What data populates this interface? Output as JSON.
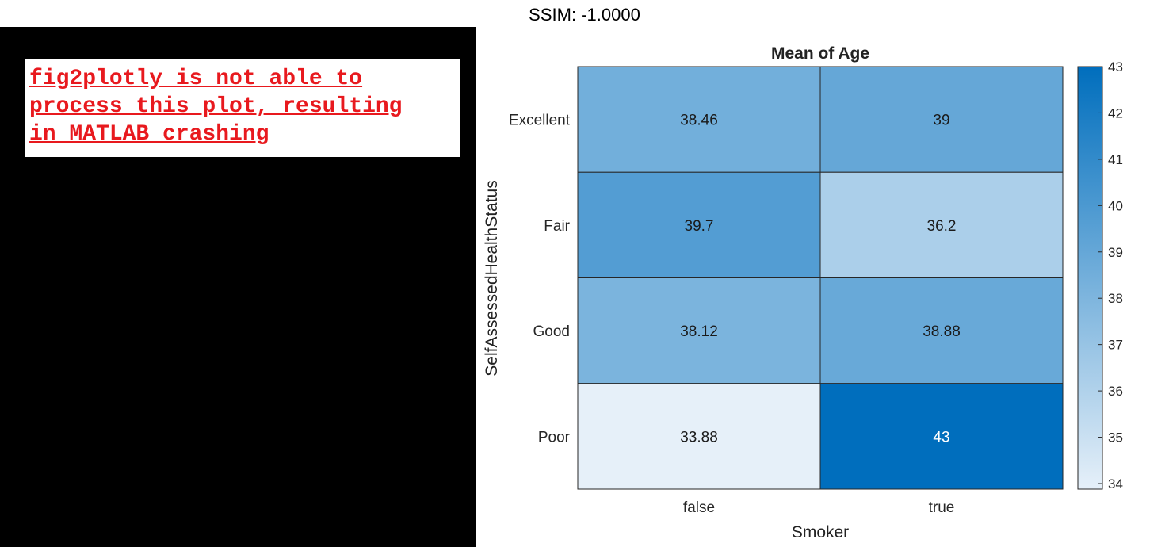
{
  "header": {
    "ssim": "SSIM: -1.0000"
  },
  "error_panel": {
    "message": "fig2plotly is not able to\nprocess this plot, resulting\nin MATLAB crashing"
  },
  "chart_data": {
    "type": "heatmap",
    "title": "Mean of Age",
    "xlabel": "Smoker",
    "ylabel": "SelfAssessedHealthStatus",
    "x_categories": [
      "false",
      "true"
    ],
    "y_categories": [
      "Excellent",
      "Fair",
      "Good",
      "Poor"
    ],
    "values": [
      [
        38.46,
        39
      ],
      [
        39.7,
        36.2
      ],
      [
        38.12,
        38.88
      ],
      [
        33.88,
        43
      ]
    ],
    "value_labels": [
      [
        "38.46",
        "39"
      ],
      [
        "39.7",
        "36.2"
      ],
      [
        "38.12",
        "38.88"
      ],
      [
        "33.88",
        "43"
      ]
    ],
    "colorbar": {
      "range": [
        33.88,
        43
      ],
      "ticks": [
        34,
        35,
        36,
        37,
        38,
        39,
        40,
        41,
        42,
        43
      ],
      "color_low": "#e6f0f9",
      "color_high": "#006ebd"
    }
  }
}
